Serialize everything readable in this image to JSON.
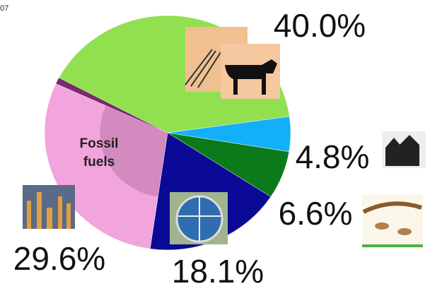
{
  "corner_text": "07",
  "chart_data": {
    "type": "pie",
    "categories": [
      null,
      null,
      null,
      null,
      null
    ],
    "values": [
      40.0,
      4.8,
      6.6,
      18.1,
      29.6
    ],
    "value_labels": [
      "40.0%",
      "4.8%",
      "6.6%",
      "18.1%",
      "29.6%"
    ],
    "colors": [
      "#90e050",
      "#12b0f8",
      "#0a7a1a",
      "#0a0a96",
      "#f2a4dc"
    ],
    "annotation_lines": [
      "Fossil",
      "fuels"
    ]
  }
}
